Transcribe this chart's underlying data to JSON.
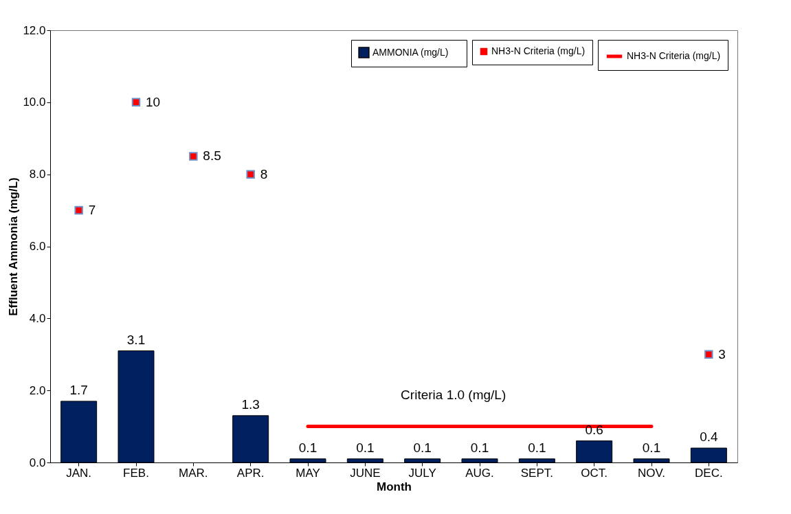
{
  "chart_data": {
    "type": "bar",
    "xlabel": "Month",
    "ylabel": "Effluent Ammonia (mg/L)",
    "categories": [
      "JAN.",
      "FEB.",
      "MAR.",
      "APR.",
      "MAY",
      "JUNE",
      "JULY",
      "AUG.",
      "SEPT.",
      "OCT.",
      "NOV.",
      "DEC."
    ],
    "series": [
      {
        "name": "AMMONIA     (mg/L)",
        "color": "#002060",
        "values": [
          1.7,
          3.1,
          null,
          1.3,
          0.1,
          0.1,
          0.1,
          0.1,
          0.1,
          0.6,
          0.1,
          0.4
        ],
        "value_labels": [
          "1.7",
          "3.1",
          null,
          "1.3",
          "0.1",
          "0.1",
          "0.1",
          "0.1",
          "0.1",
          "0.6",
          "0.1",
          "0.4"
        ]
      },
      {
        "name": "NH3-N Criteria (mg/L)",
        "type": "scatter",
        "marker": "square",
        "color": "#ff0000",
        "values": [
          7,
          10,
          8.5,
          8,
          null,
          null,
          null,
          null,
          null,
          null,
          null,
          3
        ],
        "value_labels": [
          "7",
          "10",
          "8.5",
          "8",
          null,
          null,
          null,
          null,
          null,
          null,
          null,
          "3"
        ]
      },
      {
        "name": "NH3-N Criteria (mg/L)",
        "type": "line",
        "line_style": "solid",
        "color": "#ff0000",
        "values": [
          null,
          null,
          null,
          null,
          1,
          1,
          1,
          1,
          1,
          1,
          1,
          null
        ]
      }
    ],
    "ylim": [
      0,
      12
    ],
    "yticks": [
      {
        "value": 0,
        "label": "0.0"
      },
      {
        "value": 2,
        "label": "2.0"
      },
      {
        "value": 4,
        "label": "4.0"
      },
      {
        "value": 6,
        "label": "6.0"
      },
      {
        "value": 8,
        "label": "8.0"
      },
      {
        "value": 10,
        "label": "10.0"
      },
      {
        "value": 12,
        "label": "12.0"
      }
    ],
    "annotations": [
      {
        "text": "Criteria 1.0 (mg/L)",
        "x": "JULY",
        "y": 1
      }
    ],
    "grid": false,
    "legend": "right"
  }
}
